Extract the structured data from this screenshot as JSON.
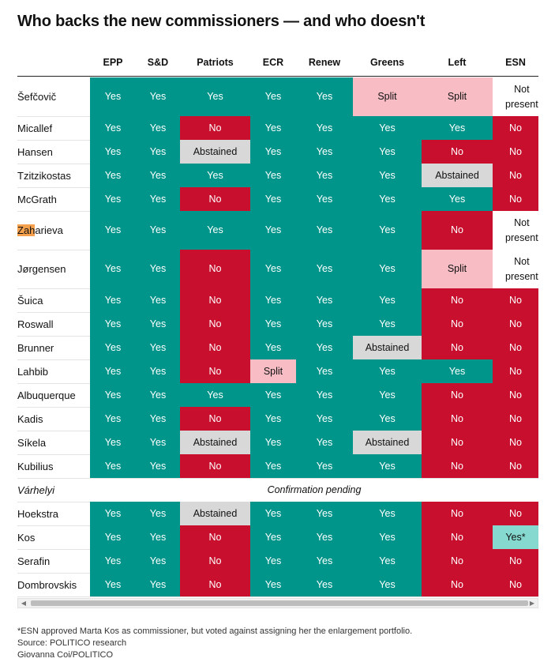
{
  "title": "Who backs the new commissioners — and who doesn't",
  "chart_data": {
    "type": "table",
    "columns": [
      "EPP",
      "S&D",
      "Patriots",
      "ECR",
      "Renew",
      "Greens",
      "Left",
      "ESN"
    ],
    "rows": [
      {
        "name": "Šefčovič",
        "values": [
          "Yes",
          "Yes",
          "Yes",
          "Yes",
          "Yes",
          "Split",
          "Split",
          "Not present"
        ]
      },
      {
        "name": "Micallef",
        "values": [
          "Yes",
          "Yes",
          "No",
          "Yes",
          "Yes",
          "Yes",
          "Yes",
          "No"
        ]
      },
      {
        "name": "Hansen",
        "values": [
          "Yes",
          "Yes",
          "Abstained",
          "Yes",
          "Yes",
          "Yes",
          "No",
          "No"
        ]
      },
      {
        "name": "Tzitzikostas",
        "values": [
          "Yes",
          "Yes",
          "Yes",
          "Yes",
          "Yes",
          "Yes",
          "Abstained",
          "No"
        ]
      },
      {
        "name": "McGrath",
        "values": [
          "Yes",
          "Yes",
          "No",
          "Yes",
          "Yes",
          "Yes",
          "Yes",
          "No"
        ]
      },
      {
        "name": "Zaharieva",
        "values": [
          "Yes",
          "Yes",
          "Yes",
          "Yes",
          "Yes",
          "Yes",
          "No",
          "Not present"
        ]
      },
      {
        "name": "Jørgensen",
        "values": [
          "Yes",
          "Yes",
          "No",
          "Yes",
          "Yes",
          "Yes",
          "Split",
          "Not present"
        ]
      },
      {
        "name": "Šuica",
        "values": [
          "Yes",
          "Yes",
          "No",
          "Yes",
          "Yes",
          "Yes",
          "No",
          "No"
        ]
      },
      {
        "name": "Roswall",
        "values": [
          "Yes",
          "Yes",
          "No",
          "Yes",
          "Yes",
          "Yes",
          "No",
          "No"
        ]
      },
      {
        "name": "Brunner",
        "values": [
          "Yes",
          "Yes",
          "No",
          "Yes",
          "Yes",
          "Abstained",
          "No",
          "No"
        ]
      },
      {
        "name": "Lahbib",
        "values": [
          "Yes",
          "Yes",
          "No",
          "Split",
          "Yes",
          "Yes",
          "Yes",
          "No"
        ]
      },
      {
        "name": "Albuquerque",
        "values": [
          "Yes",
          "Yes",
          "Yes",
          "Yes",
          "Yes",
          "Yes",
          "No",
          "No"
        ]
      },
      {
        "name": "Kadis",
        "values": [
          "Yes",
          "Yes",
          "No",
          "Yes",
          "Yes",
          "Yes",
          "No",
          "No"
        ]
      },
      {
        "name": "Síkela",
        "values": [
          "Yes",
          "Yes",
          "Abstained",
          "Yes",
          "Yes",
          "Abstained",
          "No",
          "No"
        ]
      },
      {
        "name": "Kubilius",
        "values": [
          "Yes",
          "Yes",
          "No",
          "Yes",
          "Yes",
          "Yes",
          "No",
          "No"
        ]
      },
      {
        "name": "Várhelyi",
        "pending": "Confirmation pending"
      },
      {
        "name": "Hoekstra",
        "values": [
          "Yes",
          "Yes",
          "Abstained",
          "Yes",
          "Yes",
          "Yes",
          "No",
          "No"
        ]
      },
      {
        "name": "Kos",
        "values": [
          "Yes",
          "Yes",
          "No",
          "Yes",
          "Yes",
          "Yes",
          "No",
          "Yes*"
        ]
      },
      {
        "name": "Serafin",
        "values": [
          "Yes",
          "Yes",
          "No",
          "Yes",
          "Yes",
          "Yes",
          "No",
          "No"
        ]
      },
      {
        "name": "Dombrovskis",
        "values": [
          "Yes",
          "Yes",
          "No",
          "Yes",
          "Yes",
          "Yes",
          "No",
          "No"
        ]
      }
    ],
    "colors": {
      "Yes": "#00958a",
      "No": "#c8102e",
      "Abstained": "#d8d8d8",
      "Split": "#f7bcc4",
      "Not present": "#ffffff",
      "Yes*": "#85d9cf"
    }
  },
  "footnotes": {
    "note": "*ESN approved Marta Kos as commissioner, but voted against assigning her the enlargement portfolio.",
    "source": "Source: POLITICO research",
    "credit": "Giovanna Coi/POLITICO"
  },
  "scrollbar": {
    "left_arrow": "left-arrow-icon",
    "right_arrow": "right-arrow-icon"
  }
}
